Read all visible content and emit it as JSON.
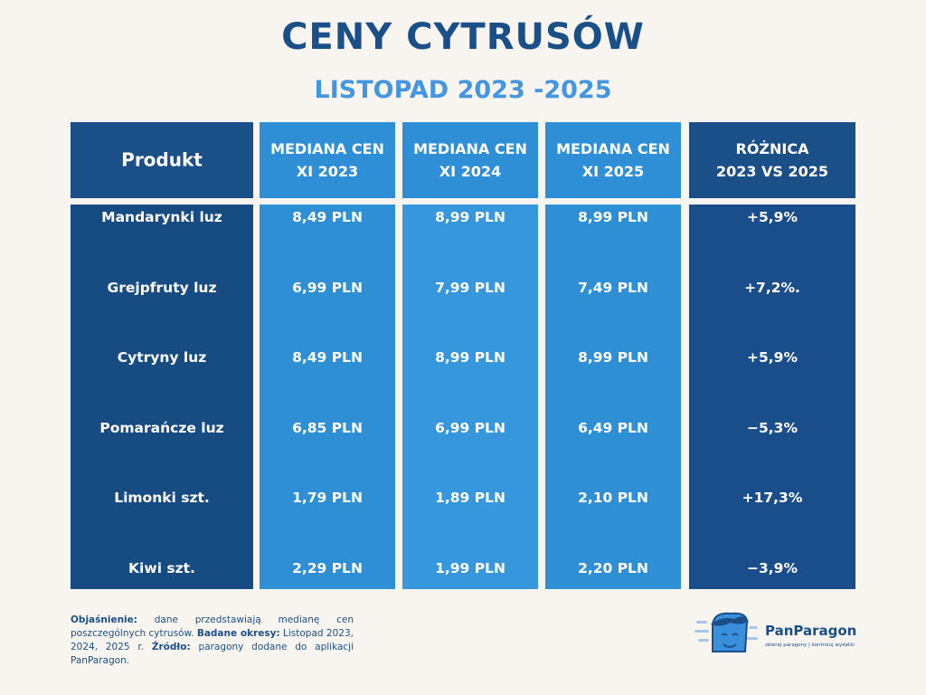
{
  "header": {
    "title": "CENY CYTRUSÓW",
    "subtitle": "LISTOPAD 2023 -2025"
  },
  "table": {
    "columns": [
      [
        "Produkt"
      ],
      [
        "MEDIANA CEN",
        "XI 2023"
      ],
      [
        "MEDIANA CEN",
        "XI 2024"
      ],
      [
        "MEDIANA CEN",
        "XI 2025"
      ],
      [
        "RÓŻNICA",
        "2023 VS 2025"
      ]
    ],
    "rows": [
      [
        "Mandarynki luz",
        "8,49 PLN",
        "8,99 PLN",
        "8,99 PLN",
        "+5,9%"
      ],
      [
        "Grejpfruty luz",
        "6,99 PLN",
        "7,99 PLN",
        "7,49 PLN",
        "+7,2%."
      ],
      [
        "Cytryny luz",
        "8,49 PLN",
        "8,99 PLN",
        "8,99 PLN",
        "+5,9%"
      ],
      [
        "Pomarańcze luz",
        "6,85 PLN",
        "6,99 PLN",
        "6,49 PLN",
        "−5,3%"
      ],
      [
        "Limonki szt.",
        "1,79 PLN",
        "1,89 PLN",
        "2,10 PLN",
        "+17,3%"
      ],
      [
        "Kiwi szt.",
        "2,29 PLN",
        "1,99 PLN",
        "2,20 PLN",
        "−3,9%"
      ]
    ]
  },
  "footnote": [
    {
      "text": "Objaśnienie:",
      "bold": true
    },
    {
      "text": "dane przedstawiają medianę cen poszczególnych cytrusów.",
      "bold": false
    },
    {
      "text": "Badane okresy:",
      "bold": true
    },
    {
      "text": "Listopad 2023, 2024, 2025 r.",
      "bold": false
    },
    {
      "text": "Źródło:",
      "bold": true
    },
    {
      "text": "paragony dodane do aplikacji PanParagon.",
      "bold": false
    }
  ],
  "logo": {
    "name": "PanParagon",
    "tagline": "zbieraj paragony | kontroluj wydatki"
  }
}
